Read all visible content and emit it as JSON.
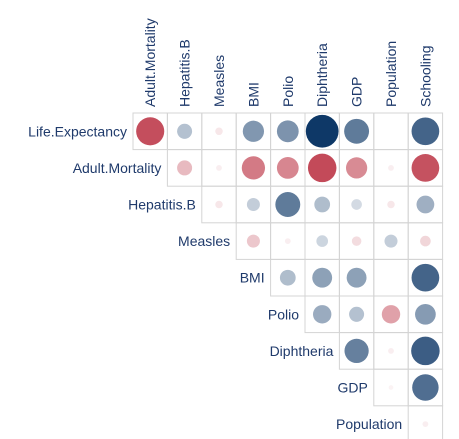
{
  "chart_data": {
    "type": "heatmap",
    "subtype": "correlation-upper-triangle-circles",
    "variables": [
      "Life.Expectancy",
      "Adult.Mortality",
      "Hepatitis.B",
      "Measles",
      "BMI",
      "Polio",
      "Diphtheria",
      "GDP",
      "Population",
      "Schooling"
    ],
    "column_labels": [
      "Adult.Mortality",
      "Hepatitis.B",
      "Measles",
      "BMI",
      "Polio",
      "Diphtheria",
      "GDP",
      "Population",
      "Schooling"
    ],
    "row_labels": [
      "Life.Expectancy",
      "Adult.Mortality",
      "Hepatitis.B",
      "Measles",
      "BMI",
      "Polio",
      "Diphtheria",
      "GDP",
      "Population"
    ],
    "value_range": [
      -1,
      1
    ],
    "color_scale": {
      "negative": "#b2182b",
      "neutral": "#ffffff",
      "positive": "#053061"
    },
    "grid": true,
    "correlations": [
      {
        "row": "Life.Expectancy",
        "col": "Adult.Mortality",
        "r": -0.7
      },
      {
        "row": "Life.Expectancy",
        "col": "Hepatitis.B",
        "r": 0.2
      },
      {
        "row": "Life.Expectancy",
        "col": "Measles",
        "r": -0.05
      },
      {
        "row": "Life.Expectancy",
        "col": "BMI",
        "r": 0.4
      },
      {
        "row": "Life.Expectancy",
        "col": "Polio",
        "r": 0.42
      },
      {
        "row": "Life.Expectancy",
        "col": "Diphtheria",
        "r": 0.95
      },
      {
        "row": "Life.Expectancy",
        "col": "GDP",
        "r": 0.55
      },
      {
        "row": "Life.Expectancy",
        "col": "Population",
        "r": 0.0
      },
      {
        "row": "Life.Expectancy",
        "col": "Schooling",
        "r": 0.68
      },
      {
        "row": "Adult.Mortality",
        "col": "Hepatitis.B",
        "r": -0.2
      },
      {
        "row": "Adult.Mortality",
        "col": "Measles",
        "r": -0.03
      },
      {
        "row": "Adult.Mortality",
        "col": "BMI",
        "r": -0.48
      },
      {
        "row": "Adult.Mortality",
        "col": "Polio",
        "r": -0.42
      },
      {
        "row": "Adult.Mortality",
        "col": "Diphtheria",
        "r": -0.72
      },
      {
        "row": "Adult.Mortality",
        "col": "GDP",
        "r": -0.4
      },
      {
        "row": "Adult.Mortality",
        "col": "Population",
        "r": -0.03
      },
      {
        "row": "Adult.Mortality",
        "col": "Schooling",
        "r": -0.68
      },
      {
        "row": "Hepatitis.B",
        "col": "Measles",
        "r": -0.05
      },
      {
        "row": "Hepatitis.B",
        "col": "BMI",
        "r": 0.15
      },
      {
        "row": "Hepatitis.B",
        "col": "Polio",
        "r": 0.55
      },
      {
        "row": "Hepatitis.B",
        "col": "Diphtheria",
        "r": 0.22
      },
      {
        "row": "Hepatitis.B",
        "col": "GDP",
        "r": 0.1
      },
      {
        "row": "Hepatitis.B",
        "col": "Population",
        "r": -0.05
      },
      {
        "row": "Hepatitis.B",
        "col": "Schooling",
        "r": 0.28
      },
      {
        "row": "Measles",
        "col": "BMI",
        "r": -0.15
      },
      {
        "row": "Measles",
        "col": "Polio",
        "r": -0.03
      },
      {
        "row": "Measles",
        "col": "Diphtheria",
        "r": 0.12
      },
      {
        "row": "Measles",
        "col": "GDP",
        "r": -0.08
      },
      {
        "row": "Measles",
        "col": "Population",
        "r": 0.15
      },
      {
        "row": "Measles",
        "col": "Schooling",
        "r": -0.1
      },
      {
        "row": "BMI",
        "col": "Polio",
        "r": 0.22
      },
      {
        "row": "BMI",
        "col": "Diphtheria",
        "r": 0.35
      },
      {
        "row": "BMI",
        "col": "GDP",
        "r": 0.35
      },
      {
        "row": "BMI",
        "col": "Population",
        "r": 0.0
      },
      {
        "row": "BMI",
        "col": "Schooling",
        "r": 0.68
      },
      {
        "row": "Polio",
        "col": "Diphtheria",
        "r": 0.3
      },
      {
        "row": "Polio",
        "col": "GDP",
        "r": 0.2
      },
      {
        "row": "Polio",
        "col": "Population",
        "r": -0.3
      },
      {
        "row": "Polio",
        "col": "Schooling",
        "r": 0.38
      },
      {
        "row": "Diphtheria",
        "col": "GDP",
        "r": 0.52
      },
      {
        "row": "Diphtheria",
        "col": "Population",
        "r": -0.03
      },
      {
        "row": "Diphtheria",
        "col": "Schooling",
        "r": 0.72
      },
      {
        "row": "GDP",
        "col": "Population",
        "r": -0.02
      },
      {
        "row": "GDP",
        "col": "Schooling",
        "r": 0.62
      },
      {
        "row": "Population",
        "col": "Schooling",
        "r": -0.03
      }
    ]
  }
}
